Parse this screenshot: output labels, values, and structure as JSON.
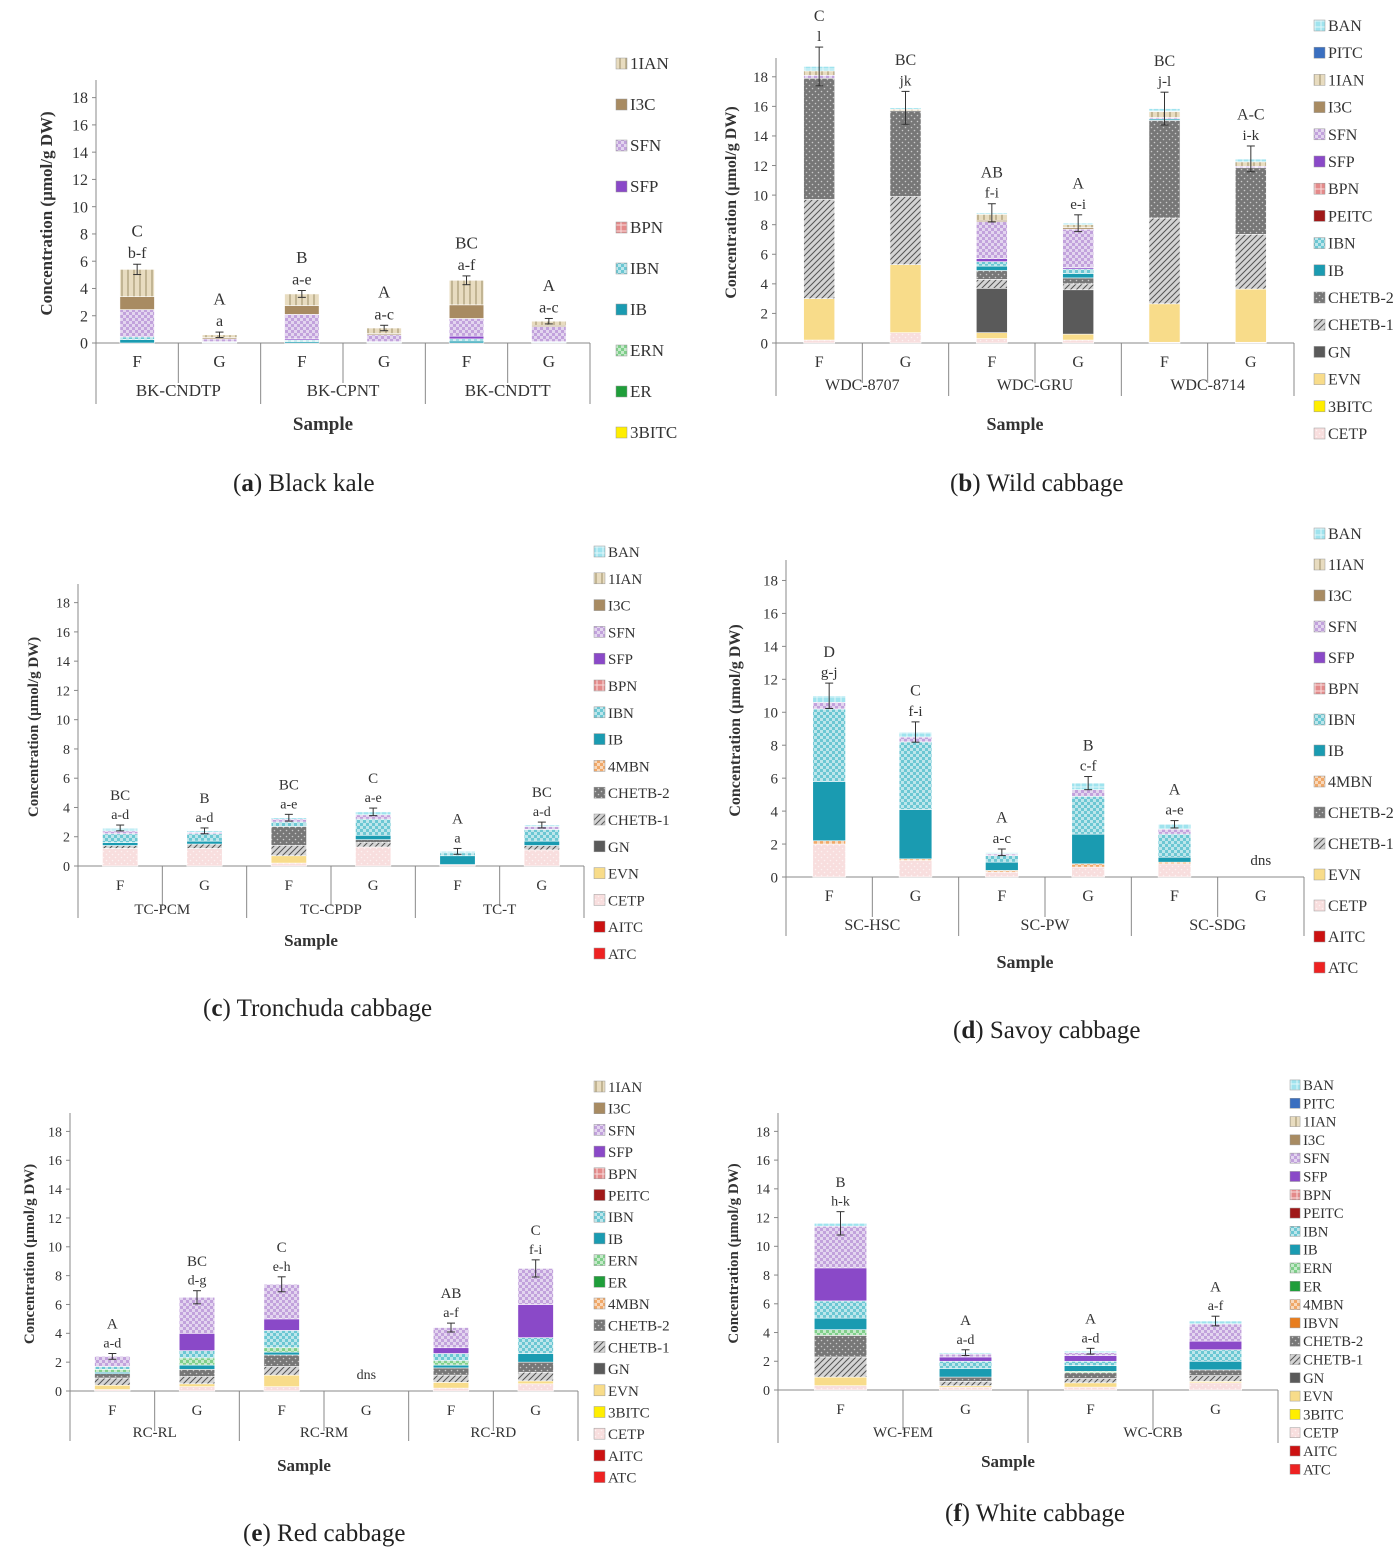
{
  "figure": {
    "ylabel": "Concentration (µmol/g DW)",
    "xlabel": "Sample",
    "yticks": [
      0,
      2,
      4,
      6,
      8,
      10,
      12,
      14,
      16,
      18
    ],
    "ymax": 19
  },
  "compound_colors": {
    "BAN": "#9fe3ee",
    "PITC": "#3a6fc0",
    "1IAN": "#e8dcc0",
    "I3C": "#a88b62",
    "SFN": "#c2a2dc",
    "SFP": "#8a49c8",
    "BPN": "#e48a8a",
    "PEITC": "#a01818",
    "IBN": "#6cc7d3",
    "IB": "#1a9bb1",
    "ERN": "#7fcf8a",
    "ER": "#1f9e3a",
    "4MBN": "#f0a868",
    "IBVN": "#e87d1e",
    "CHETB-2": "#777777",
    "CHETB-1": "#d4d4d4",
    "GN": "#5a5a5a",
    "EVN": "#f8dc8a",
    "3BITC": "#ffee00",
    "CETP": "#f8dede",
    "AITC": "#cc1111",
    "ATC": "#ee2222"
  },
  "chart_data": [
    {
      "type": "bar",
      "stacked": true,
      "id": "a",
      "caption_letter": "a",
      "caption_text": "Black kale",
      "groups": [
        "BK-CNDTP",
        "BK-CPNT",
        "BK-CNDTT"
      ],
      "categories": [
        "F",
        "G",
        "F",
        "G",
        "F",
        "G"
      ],
      "uppercase_labels": [
        "C",
        "A",
        "B",
        "A",
        "BC",
        "A"
      ],
      "lowercase_labels": [
        "b-f",
        "a",
        "a-e",
        "a-c",
        "a-f",
        "a-c"
      ],
      "legend": [
        "1IAN",
        "I3C",
        "SFN",
        "SFP",
        "BPN",
        "IBN",
        "IB",
        "ERN",
        "ER",
        "3BITC"
      ],
      "series": [
        {
          "name": "IB",
          "values": [
            0.25,
            0.05,
            0.1,
            0.05,
            0.15,
            0.05
          ]
        },
        {
          "name": "IBN",
          "values": [
            0.2,
            0.05,
            0.1,
            0.05,
            0.15,
            0.05
          ]
        },
        {
          "name": "SFP",
          "values": [
            0.0,
            0.0,
            0.1,
            0.0,
            0.2,
            0.0
          ]
        },
        {
          "name": "SFN",
          "values": [
            2.0,
            0.2,
            1.8,
            0.5,
            1.3,
            1.1
          ]
        },
        {
          "name": "I3C",
          "values": [
            0.95,
            0.1,
            0.65,
            0.1,
            1.0,
            0.1
          ]
        },
        {
          "name": "1IAN",
          "values": [
            2.0,
            0.2,
            0.85,
            0.4,
            1.8,
            0.3
          ]
        }
      ]
    },
    {
      "type": "bar",
      "stacked": true,
      "id": "b",
      "caption_letter": "b",
      "caption_text": "Wild cabbage",
      "groups": [
        "WDC-8707",
        "WDC-GRU",
        "WDC-8714"
      ],
      "categories": [
        "F",
        "G",
        "F",
        "G",
        "F",
        "G"
      ],
      "uppercase_labels": [
        "C",
        "BC",
        "AB",
        "A",
        "BC",
        "A-C"
      ],
      "lowercase_labels": [
        "l",
        "jk",
        "f-i",
        "e-i",
        "j-l",
        "i-k"
      ],
      "legend": [
        "BAN",
        "PITC",
        "1IAN",
        "I3C",
        "SFN",
        "SFP",
        "BPN",
        "PEITC",
        "IBN",
        "IB",
        "CHETB-2",
        "CHETB-1",
        "GN",
        "EVN",
        "3BITC",
        "CETP"
      ],
      "series": [
        {
          "name": "CETP",
          "values": [
            0.2,
            0.7,
            0.3,
            0.2,
            0.05,
            0.05
          ]
        },
        {
          "name": "EVN",
          "values": [
            2.8,
            4.6,
            0.4,
            0.4,
            2.6,
            3.6
          ]
        },
        {
          "name": "GN",
          "values": [
            0.0,
            0.0,
            3.0,
            3.0,
            0.0,
            0.0
          ]
        },
        {
          "name": "CHETB-1",
          "values": [
            6.7,
            4.6,
            0.6,
            0.4,
            5.8,
            3.7
          ]
        },
        {
          "name": "CHETB-2",
          "values": [
            8.2,
            5.8,
            0.6,
            0.4,
            6.6,
            4.5
          ]
        },
        {
          "name": "IB",
          "values": [
            0.0,
            0.0,
            0.3,
            0.3,
            0.1,
            0.0
          ]
        },
        {
          "name": "IBN",
          "values": [
            0.0,
            0.0,
            0.3,
            0.3,
            0.0,
            0.0
          ]
        },
        {
          "name": "SFP",
          "values": [
            0.0,
            0.0,
            0.2,
            0.1,
            0.0,
            0.0
          ]
        },
        {
          "name": "SFN",
          "values": [
            0.2,
            0.0,
            2.5,
            2.6,
            0.1,
            0.1
          ]
        },
        {
          "name": "I3C",
          "values": [
            0.0,
            0.0,
            0.1,
            0.1,
            0.0,
            0.0
          ]
        },
        {
          "name": "1IAN",
          "values": [
            0.3,
            0.1,
            0.4,
            0.2,
            0.4,
            0.3
          ]
        },
        {
          "name": "BAN",
          "values": [
            0.3,
            0.1,
            0.1,
            0.1,
            0.2,
            0.2
          ]
        }
      ]
    },
    {
      "type": "bar",
      "stacked": true,
      "id": "c",
      "caption_letter": "c",
      "caption_text": "Tronchuda cabbage",
      "groups": [
        "TC-PCM",
        "TC-CPDP",
        "TC-T"
      ],
      "categories": [
        "F",
        "G",
        "F",
        "G",
        "F",
        "G"
      ],
      "uppercase_labels": [
        "BC",
        "B",
        "BC",
        "C",
        "A",
        "BC"
      ],
      "lowercase_labels": [
        "a-d",
        "a-d",
        "a-e",
        "a-e",
        "a",
        "a-d"
      ],
      "legend": [
        "BAN",
        "1IAN",
        "I3C",
        "SFN",
        "SFP",
        "BPN",
        "IBN",
        "IB",
        "4MBN",
        "CHETB-2",
        "CHETB-1",
        "GN",
        "EVN",
        "CETP",
        "AITC",
        "ATC"
      ],
      "series": [
        {
          "name": "CETP",
          "values": [
            1.2,
            1.2,
            0.2,
            1.3,
            0.1,
            1.1
          ]
        },
        {
          "name": "EVN",
          "values": [
            0.0,
            0.0,
            0.5,
            0.0,
            0.0,
            0.0
          ]
        },
        {
          "name": "CHETB-1",
          "values": [
            0.2,
            0.3,
            0.7,
            0.3,
            0.0,
            0.3
          ]
        },
        {
          "name": "CHETB-2",
          "values": [
            0.0,
            0.0,
            1.3,
            0.2,
            0.0,
            0.0
          ]
        },
        {
          "name": "IB",
          "values": [
            0.2,
            0.2,
            0.0,
            0.3,
            0.6,
            0.3
          ]
        },
        {
          "name": "IBN",
          "values": [
            0.6,
            0.5,
            0.3,
            1.1,
            0.2,
            0.8
          ]
        },
        {
          "name": "SFN",
          "values": [
            0.2,
            0.1,
            0.2,
            0.3,
            0.0,
            0.2
          ]
        },
        {
          "name": "BAN",
          "values": [
            0.2,
            0.1,
            0.1,
            0.2,
            0.1,
            0.1
          ]
        }
      ]
    },
    {
      "type": "bar",
      "stacked": true,
      "id": "d",
      "caption_letter": "d",
      "caption_text": "Savoy cabbage",
      "groups": [
        "SC-HSC",
        "SC-PW",
        "SC-SDG"
      ],
      "categories": [
        "F",
        "G",
        "F",
        "G",
        "F",
        "G"
      ],
      "uppercase_labels": [
        "D",
        "C",
        "A",
        "B",
        "A",
        ""
      ],
      "lowercase_labels": [
        "g-j",
        "f-i",
        "a-c",
        "c-f",
        "a-e",
        "dns"
      ],
      "legend": [
        "BAN",
        "1IAN",
        "I3C",
        "SFN",
        "SFP",
        "BPN",
        "IBN",
        "IB",
        "4MBN",
        "CHETB-2",
        "CHETB-1",
        "EVN",
        "CETP",
        "AITC",
        "ATC"
      ],
      "series": [
        {
          "name": "CETP",
          "values": [
            2.0,
            1.0,
            0.3,
            0.6,
            0.8,
            0.0
          ]
        },
        {
          "name": "4MBN",
          "values": [
            0.2,
            0.1,
            0.1,
            0.2,
            0.1,
            0.0
          ]
        },
        {
          "name": "IB",
          "values": [
            3.6,
            3.0,
            0.5,
            1.8,
            0.3,
            0.0
          ]
        },
        {
          "name": "IBN",
          "values": [
            4.4,
            4.1,
            0.4,
            2.3,
            1.4,
            0.0
          ]
        },
        {
          "name": "SFN",
          "values": [
            0.4,
            0.3,
            0.1,
            0.4,
            0.3,
            0.0
          ]
        },
        {
          "name": "BAN",
          "values": [
            0.4,
            0.3,
            0.1,
            0.4,
            0.3,
            0.0
          ]
        }
      ]
    },
    {
      "type": "bar",
      "stacked": true,
      "id": "e",
      "caption_letter": "e",
      "caption_text": "Red cabbage",
      "groups": [
        "RC-RL",
        "RC-RM",
        "RC-RD"
      ],
      "categories": [
        "F",
        "G",
        "F",
        "G",
        "F",
        "G"
      ],
      "uppercase_labels": [
        "A",
        "BC",
        "C",
        "",
        "AB",
        "C"
      ],
      "lowercase_labels": [
        "a-d",
        "d-g",
        "e-h",
        "dns",
        "a-f",
        "f-i"
      ],
      "legend": [
        "1IAN",
        "I3C",
        "SFN",
        "SFP",
        "BPN",
        "PEITC",
        "IBN",
        "IB",
        "ERN",
        "ER",
        "4MBN",
        "CHETB-2",
        "CHETB-1",
        "GN",
        "EVN",
        "3BITC",
        "CETP",
        "AITC",
        "ATC"
      ],
      "series": [
        {
          "name": "CETP",
          "values": [
            0.1,
            0.3,
            0.3,
            0.0,
            0.2,
            0.5
          ]
        },
        {
          "name": "EVN",
          "values": [
            0.3,
            0.2,
            0.8,
            0.0,
            0.4,
            0.2
          ]
        },
        {
          "name": "CHETB-1",
          "values": [
            0.5,
            0.5,
            0.6,
            0.0,
            0.5,
            0.6
          ]
        },
        {
          "name": "CHETB-2",
          "values": [
            0.3,
            0.5,
            0.8,
            0.0,
            0.5,
            0.7
          ]
        },
        {
          "name": "IB",
          "values": [
            0.1,
            0.3,
            0.2,
            0.0,
            0.2,
            0.6
          ]
        },
        {
          "name": "ERN",
          "values": [
            0.2,
            0.5,
            0.3,
            0.0,
            0.3,
            0.0
          ]
        },
        {
          "name": "IBN",
          "values": [
            0.2,
            0.5,
            1.2,
            0.0,
            0.5,
            1.1
          ]
        },
        {
          "name": "SFP",
          "values": [
            0.0,
            1.2,
            0.8,
            0.0,
            0.4,
            2.3
          ]
        },
        {
          "name": "SFN",
          "values": [
            0.7,
            2.5,
            2.4,
            0.0,
            1.4,
            2.5
          ]
        }
      ]
    },
    {
      "type": "bar",
      "stacked": true,
      "id": "f",
      "caption_letter": "f",
      "caption_text": "White cabbage",
      "groups": [
        "WC-FEM",
        "WC-CRB"
      ],
      "categories": [
        "F",
        "G",
        "F",
        "G"
      ],
      "uppercase_labels": [
        "B",
        "A",
        "A",
        "A"
      ],
      "lowercase_labels": [
        "h-k",
        "a-d",
        "a-d",
        "a-f"
      ],
      "legend": [
        "BAN",
        "PITC",
        "1IAN",
        "I3C",
        "SFN",
        "SFP",
        "BPN",
        "PEITC",
        "IBN",
        "IB",
        "ERN",
        "ER",
        "4MBN",
        "IBVN",
        "CHETB-2",
        "CHETB-1",
        "GN",
        "EVN",
        "3BITC",
        "CETP",
        "AITC",
        "ATC"
      ],
      "series": [
        {
          "name": "CETP",
          "values": [
            0.3,
            0.2,
            0.2,
            0.5
          ]
        },
        {
          "name": "EVN",
          "values": [
            0.6,
            0.1,
            0.3,
            0.1
          ]
        },
        {
          "name": "CHETB-1",
          "values": [
            1.4,
            0.3,
            0.3,
            0.4
          ]
        },
        {
          "name": "CHETB-2",
          "values": [
            1.5,
            0.3,
            0.4,
            0.4
          ]
        },
        {
          "name": "ERN",
          "values": [
            0.4,
            0.0,
            0.1,
            0.0
          ]
        },
        {
          "name": "IB",
          "values": [
            0.8,
            0.6,
            0.4,
            0.6
          ]
        },
        {
          "name": "IBN",
          "values": [
            1.2,
            0.5,
            0.3,
            0.8
          ]
        },
        {
          "name": "SFP",
          "values": [
            2.3,
            0.3,
            0.4,
            0.6
          ]
        },
        {
          "name": "SFN",
          "values": [
            2.9,
            0.2,
            0.2,
            1.2
          ]
        },
        {
          "name": "BAN",
          "values": [
            0.2,
            0.1,
            0.1,
            0.2
          ]
        }
      ]
    }
  ]
}
